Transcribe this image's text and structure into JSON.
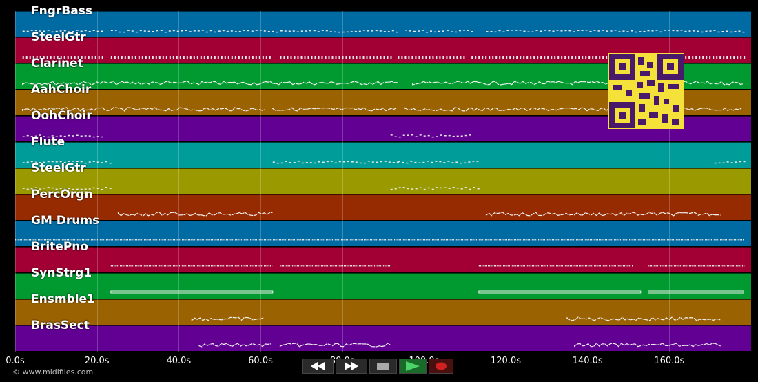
{
  "tracks": [
    {
      "name": "FngrBass",
      "color": "#006aa3"
    },
    {
      "name": "SteelGtr",
      "color": "#a20035"
    },
    {
      "name": "Clarinet",
      "color": "#009a30"
    },
    {
      "name": "AahChoir",
      "color": "#9a6200"
    },
    {
      "name": "OohChoir",
      "color": "#610093"
    },
    {
      "name": "Flute",
      "color": "#009c9a"
    },
    {
      "name": "SteelGtr",
      "color": "#9a9a00"
    },
    {
      "name": "PercOrgn",
      "color": "#962a00"
    },
    {
      "name": "GM Drums",
      "color": "#006aa3"
    },
    {
      "name": "BritePno",
      "color": "#a20035"
    },
    {
      "name": "SynStrg1",
      "color": "#009a30"
    },
    {
      "name": "Ensmble1",
      "color": "#9a6200"
    },
    {
      "name": "BrasSect",
      "color": "#610093"
    }
  ],
  "timeline": {
    "ticks": [
      "0.0s",
      "20.0s",
      "40.0s",
      "60.0s",
      "80.0s",
      "100.0s",
      "120.0s",
      "140.0s",
      "160.0s"
    ],
    "duration_s": 180
  },
  "transport": {
    "rewind_icon": "rewind-icon",
    "forward_icon": "fast-forward-icon",
    "stop_icon": "stop-icon",
    "play_icon": "play-icon",
    "record_icon": "record-icon"
  },
  "footer": {
    "copyright": "© www.midifiles.com"
  }
}
